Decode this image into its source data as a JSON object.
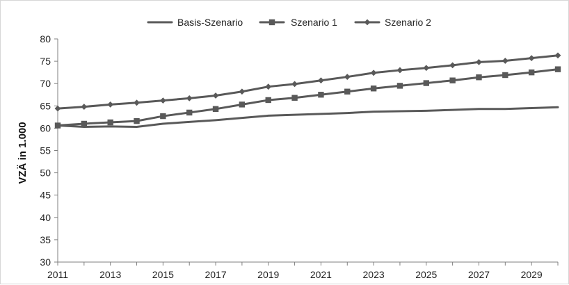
{
  "chart_data": {
    "type": "line",
    "title": "",
    "xlabel": "",
    "ylabel": "VZÄ in 1.000",
    "x": [
      2011,
      2012,
      2013,
      2014,
      2015,
      2016,
      2017,
      2018,
      2019,
      2020,
      2021,
      2022,
      2023,
      2024,
      2025,
      2026,
      2027,
      2028,
      2029,
      2030
    ],
    "x_tick_labels": [
      "2011",
      "2013",
      "2015",
      "2017",
      "2019",
      "2021",
      "2023",
      "2025",
      "2027",
      "2029"
    ],
    "y_tick_labels": [
      "30",
      "35",
      "40",
      "45",
      "50",
      "55",
      "60",
      "65",
      "70",
      "75",
      "80"
    ],
    "xlim": [
      2011,
      2030
    ],
    "ylim": [
      30,
      80
    ],
    "grid": false,
    "legend": "top",
    "series": [
      {
        "name": "Basis-Szenario",
        "marker": "none",
        "color": "#595959",
        "values": [
          60.6,
          60.3,
          60.4,
          60.3,
          61.0,
          61.4,
          61.8,
          62.3,
          62.8,
          63.0,
          63.2,
          63.4,
          63.7,
          63.8,
          63.9,
          64.1,
          64.3,
          64.3,
          64.5,
          64.7
        ]
      },
      {
        "name": "Szenario 1",
        "marker": "square",
        "color": "#595959",
        "values": [
          60.6,
          61.0,
          61.3,
          61.6,
          62.7,
          63.5,
          64.3,
          65.3,
          66.3,
          66.8,
          67.5,
          68.2,
          68.9,
          69.5,
          70.1,
          70.7,
          71.4,
          71.9,
          72.5,
          73.2
        ]
      },
      {
        "name": "Szenario 2",
        "marker": "diamond",
        "color": "#595959",
        "values": [
          64.4,
          64.8,
          65.3,
          65.7,
          66.2,
          66.7,
          67.3,
          68.2,
          69.3,
          69.9,
          70.7,
          71.5,
          72.4,
          73.0,
          73.5,
          74.1,
          74.8,
          75.1,
          75.7,
          76.3
        ]
      }
    ]
  }
}
